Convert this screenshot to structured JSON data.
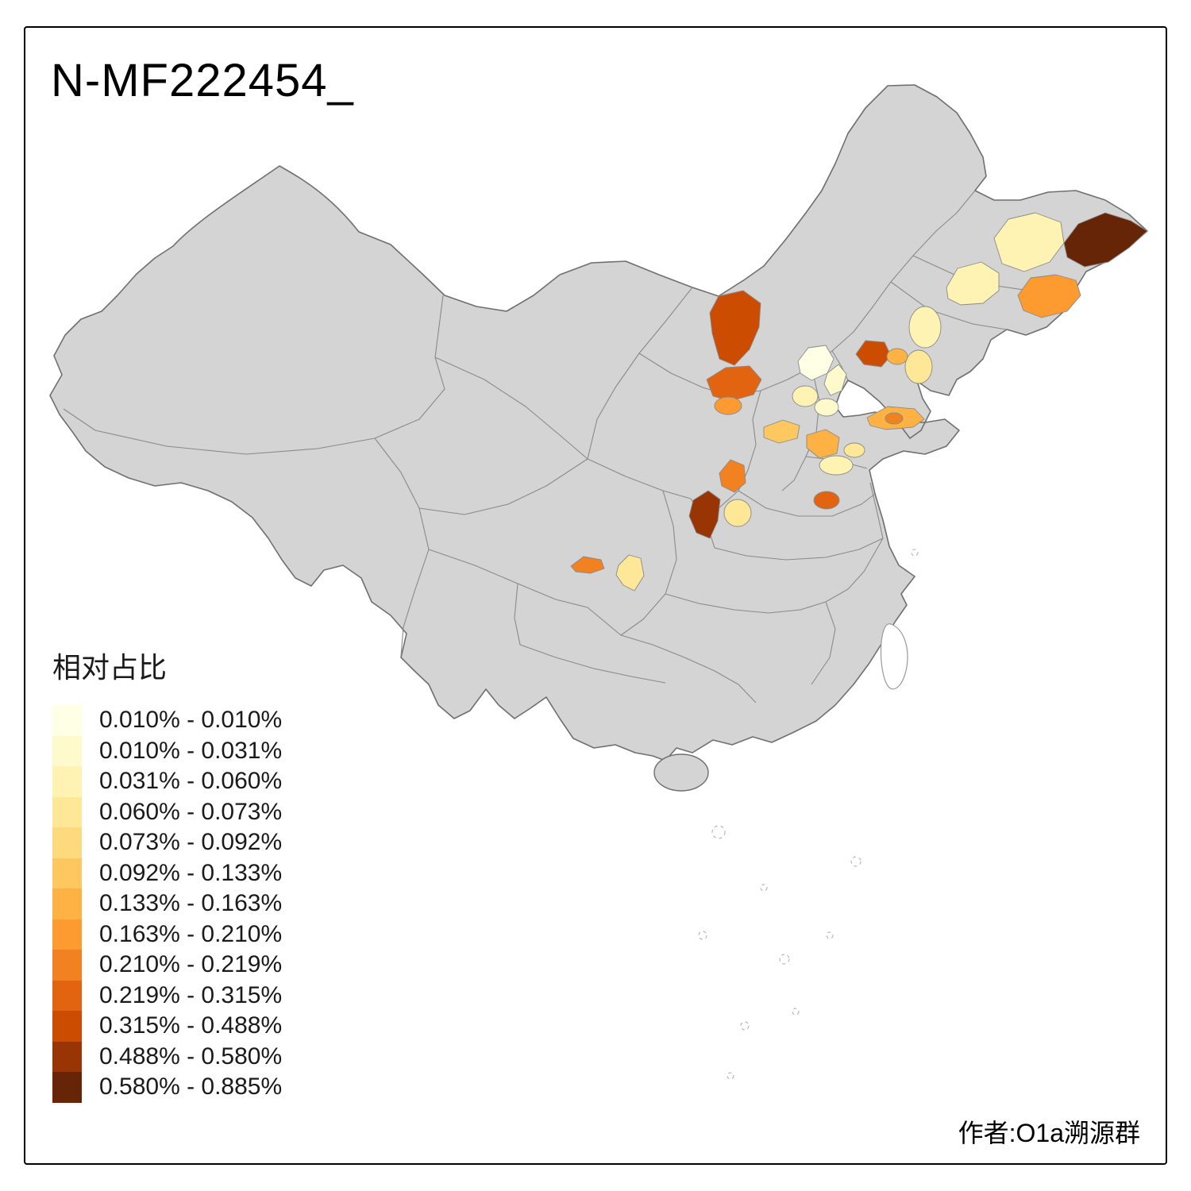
{
  "title": "N-MF222454_",
  "attribution": "作者:O1a溯源群",
  "legend": {
    "title": "相对占比"
  },
  "map": {
    "land_color": "#d4d4d4",
    "outline_color": "#6f6f6f",
    "province_border_color": "#8a8a8a",
    "background": "#ffffff"
  },
  "chart_data": {
    "type": "choropleth",
    "title": "N-MF222454_",
    "legend_title": "相对占比",
    "area": "China, prefecture-level regions",
    "value_label": "相对占比 (relative proportion %)",
    "bins": [
      {
        "label": "0.010% - 0.010%",
        "color": "#FFFFE5"
      },
      {
        "label": "0.010% - 0.031%",
        "color": "#FFFACC"
      },
      {
        "label": "0.031% - 0.060%",
        "color": "#FEF3B2"
      },
      {
        "label": "0.060% - 0.073%",
        "color": "#FEE797"
      },
      {
        "label": "0.073% - 0.092%",
        "color": "#FEDA7E"
      },
      {
        "label": "0.092% - 0.133%",
        "color": "#FEC75F"
      },
      {
        "label": "0.133% - 0.163%",
        "color": "#FEB243"
      },
      {
        "label": "0.163% - 0.210%",
        "color": "#FD9B30"
      },
      {
        "label": "0.210% - 0.219%",
        "color": "#F28122"
      },
      {
        "label": "0.219% - 0.315%",
        "color": "#E26310"
      },
      {
        "label": "0.315% - 0.488%",
        "color": "#CC4C02"
      },
      {
        "label": "0.488% - 0.580%",
        "color": "#993404"
      },
      {
        "label": "0.580% - 0.885%",
        "color": "#662506"
      }
    ],
    "regions": [
      {
        "id": "northeast-far-east",
        "bin": 13
      },
      {
        "id": "northeast-east",
        "bin": 3
      },
      {
        "id": "northeast-central",
        "bin": 3
      },
      {
        "id": "jilin-east",
        "bin": 8
      },
      {
        "id": "liaoning-north",
        "bin": 3
      },
      {
        "id": "liaoning-central",
        "bin": 4
      },
      {
        "id": "inner-mongolia-west",
        "bin": 11
      },
      {
        "id": "inner-mongolia-south",
        "bin": 10
      },
      {
        "id": "shanxi-north",
        "bin": 8
      },
      {
        "id": "liaoning-west-dark",
        "bin": 11
      },
      {
        "id": "liaoning-coastal",
        "bin": 7
      },
      {
        "id": "beijing",
        "bin": 1
      },
      {
        "id": "tianjin",
        "bin": 2
      },
      {
        "id": "hebei-central",
        "bin": 3
      },
      {
        "id": "hebei-south",
        "bin": 2
      },
      {
        "id": "shandong-peninsula",
        "bin": 7
      },
      {
        "id": "shandong-peninsula-dark",
        "bin": 9
      },
      {
        "id": "shanxi-south",
        "bin": 6
      },
      {
        "id": "shandong-west",
        "bin": 7
      },
      {
        "id": "shandong-southwest-pale",
        "bin": 3
      },
      {
        "id": "shandong-central-pale",
        "bin": 4
      },
      {
        "id": "shaanxi-north",
        "bin": 9
      },
      {
        "id": "shaanxi-central",
        "bin": 12
      },
      {
        "id": "shaanxi-east-pale",
        "bin": 4
      },
      {
        "id": "henan-central",
        "bin": 10
      },
      {
        "id": "sichuan-central",
        "bin": 9
      },
      {
        "id": "chongqing-west",
        "bin": 4
      }
    ]
  }
}
